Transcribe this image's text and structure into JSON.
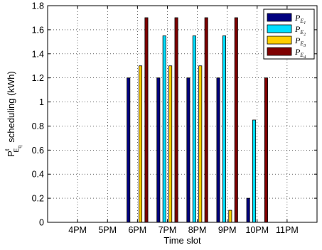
{
  "chart_data": {
    "type": "bar",
    "categories": [
      "4PM",
      "5PM",
      "6PM",
      "7PM",
      "8PM",
      "9PM",
      "10PM",
      "11PM"
    ],
    "series": [
      {
        "name": "P",
        "sub": "E",
        "subsub": "1",
        "color": "#00007f",
        "values": [
          0,
          0,
          1.2,
          1.2,
          1.2,
          1.2,
          0.2,
          0
        ]
      },
      {
        "name": "P",
        "sub": "E",
        "subsub": "2",
        "color": "#00dfff",
        "values": [
          0,
          0,
          0,
          1.55,
          1.55,
          1.55,
          0.85,
          0
        ]
      },
      {
        "name": "P",
        "sub": "E",
        "subsub": "3",
        "color": "#ffcf00",
        "values": [
          0,
          0,
          1.3,
          1.3,
          1.3,
          0.1,
          0,
          0
        ]
      },
      {
        "name": "P",
        "sub": "E",
        "subsub": "4",
        "color": "#7f0000",
        "values": [
          0,
          0,
          1.7,
          1.7,
          1.7,
          1.7,
          1.2,
          0
        ]
      }
    ],
    "xlabel": "Time slot",
    "ylabel": {
      "main": "P",
      "sup": "t",
      "sub": "E",
      "subsub": "q",
      "rest": "scheduling (kWh)"
    },
    "ylim": [
      0,
      1.8
    ],
    "yticks": [
      "0",
      "0.2",
      "0.4",
      "0.6",
      "0.8",
      "1",
      "1.2",
      "1.4",
      "1.6",
      "1.8"
    ],
    "grid": true,
    "legend_position": "top-right"
  }
}
